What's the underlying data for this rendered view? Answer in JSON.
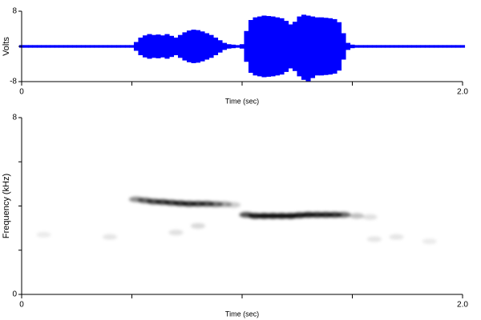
{
  "chart_data": [
    {
      "type": "waveform",
      "y_label": "Volts",
      "x_label": "Time (sec)",
      "color": "#0000ff",
      "xlim": [
        0,
        2
      ],
      "xticks": [
        0,
        {
          "value": 2,
          "label": "2.0"
        }
      ],
      "xminorticks": [
        0.5,
        1,
        1.5
      ],
      "ylim": [
        -8,
        8
      ],
      "yticks": [
        {
          "value": -8,
          "label": "-8"
        },
        8
      ],
      "yminorticks": [
        0
      ],
      "x": [
        0,
        0.02,
        0.04,
        0.06,
        0.08,
        0.1,
        0.12,
        0.14,
        0.16,
        0.18,
        0.2,
        0.22,
        0.24,
        0.26,
        0.28,
        0.3,
        0.32,
        0.34,
        0.36,
        0.38,
        0.4,
        0.42,
        0.44,
        0.46,
        0.48,
        0.5,
        0.52,
        0.54,
        0.56,
        0.58,
        0.6,
        0.62,
        0.64,
        0.66,
        0.68,
        0.7,
        0.72,
        0.74,
        0.76,
        0.78,
        0.8,
        0.82,
        0.84,
        0.86,
        0.88,
        0.9,
        0.92,
        0.94,
        0.96,
        0.98,
        1,
        1.02,
        1.04,
        1.06,
        1.08,
        1.1,
        1.12,
        1.14,
        1.16,
        1.18,
        1.2,
        1.22,
        1.24,
        1.26,
        1.28,
        1.3,
        1.32,
        1.34,
        1.36,
        1.38,
        1.4,
        1.42,
        1.44,
        1.46,
        1.48,
        1.5,
        1.52,
        1.54,
        1.56,
        1.58,
        1.6,
        1.62,
        1.64,
        1.66,
        1.68,
        1.7,
        1.72,
        1.74,
        1.76,
        1.78,
        1.8,
        1.82,
        1.84,
        1.86,
        1.88,
        1.9,
        1.92,
        1.94,
        1.96,
        1.98,
        2
      ],
      "upper": [
        0.3,
        0.3,
        0.3,
        0.3,
        0.3,
        0.3,
        0.3,
        0.3,
        0.3,
        0.3,
        0.3,
        0.3,
        0.3,
        0.3,
        0.3,
        0.3,
        0.3,
        0.3,
        0.3,
        0.3,
        0.3,
        0.3,
        0.3,
        0.3,
        0.3,
        0.3,
        1.0,
        2.0,
        2.5,
        2.8,
        2.6,
        2.7,
        2.5,
        2.8,
        2.4,
        2.0,
        2.6,
        3.2,
        3.6,
        3.8,
        3.7,
        3.4,
        3.0,
        2.6,
        2.0,
        1.4,
        0.8,
        0.5,
        0.4,
        0.3,
        0.5,
        3.5,
        6.0,
        6.6,
        6.8,
        7.0,
        6.9,
        6.8,
        6.6,
        6.4,
        5.8,
        5.0,
        5.6,
        6.8,
        7.2,
        7.0,
        6.8,
        6.6,
        6.6,
        6.5,
        6.4,
        6.2,
        5.5,
        3.0,
        0.8,
        0.4,
        0.3,
        0.3,
        0.3,
        0.3,
        0.3,
        0.3,
        0.3,
        0.3,
        0.3,
        0.3,
        0.3,
        0.3,
        0.3,
        0.3,
        0.3,
        0.3,
        0.3,
        0.3,
        0.3,
        0.3,
        0.3,
        0.3,
        0.3,
        0.3,
        0.3
      ],
      "lower": [
        -0.3,
        -0.3,
        -0.3,
        -0.3,
        -0.3,
        -0.3,
        -0.3,
        -0.3,
        -0.3,
        -0.3,
        -0.3,
        -0.3,
        -0.3,
        -0.3,
        -0.3,
        -0.3,
        -0.3,
        -0.3,
        -0.3,
        -0.3,
        -0.3,
        -0.3,
        -0.3,
        -0.3,
        -0.3,
        -0.3,
        -1.0,
        -2.0,
        -2.5,
        -2.8,
        -2.6,
        -2.7,
        -2.5,
        -2.8,
        -2.4,
        -2.0,
        -2.6,
        -3.2,
        -3.6,
        -3.8,
        -3.7,
        -3.4,
        -3.0,
        -2.6,
        -2.0,
        -1.4,
        -0.8,
        -0.5,
        -0.4,
        -0.3,
        -0.5,
        -3.5,
        -6.0,
        -6.6,
        -6.8,
        -7.0,
        -6.9,
        -6.8,
        -6.6,
        -6.4,
        -5.8,
        -5.0,
        -5.6,
        -6.8,
        -7.6,
        -7.9,
        -7.2,
        -6.6,
        -6.6,
        -6.5,
        -6.4,
        -6.2,
        -5.5,
        -3.0,
        -0.8,
        -0.4,
        -0.3,
        -0.3,
        -0.3,
        -0.3,
        -0.3,
        -0.3,
        -0.3,
        -0.3,
        -0.3,
        -0.3,
        -0.3,
        -0.3,
        -0.3,
        -0.3,
        -0.3,
        -0.3,
        -0.3,
        -0.3,
        -0.3,
        -0.3,
        -0.3,
        -0.3,
        -0.3,
        -0.3,
        -0.3
      ]
    },
    {
      "type": "spectrogram",
      "y_label": "Frequency (kHz)",
      "x_label": "Time (sec)",
      "color": "#000000",
      "xlim": [
        0,
        2
      ],
      "xticks": [
        0,
        {
          "value": 2,
          "label": "2.0"
        }
      ],
      "xminorticks": [
        0.5,
        1,
        1.5
      ],
      "ylim": [
        0,
        8
      ],
      "yticks": [
        0,
        8
      ],
      "yminorticks": [
        2,
        4,
        6
      ],
      "x": [
        0.52,
        0.56,
        0.6,
        0.64,
        0.68,
        0.72,
        0.76,
        0.8,
        0.84,
        0.88,
        0.92,
        0.96,
        1.02,
        1.06,
        1.1,
        1.14,
        1.18,
        1.22,
        1.26,
        1.3,
        1.34,
        1.38,
        1.42,
        1.46,
        1.52,
        1.58,
        0.1,
        0.4,
        0.7,
        0.8,
        1.6,
        1.7,
        1.85
      ],
      "y": [
        4.3,
        4.25,
        4.2,
        4.18,
        4.15,
        4.12,
        4.1,
        4.1,
        4.1,
        4.08,
        4.08,
        4.05,
        3.6,
        3.55,
        3.55,
        3.55,
        3.55,
        3.55,
        3.58,
        3.6,
        3.6,
        3.6,
        3.6,
        3.6,
        3.55,
        3.5,
        2.7,
        2.6,
        2.8,
        3.1,
        2.5,
        2.6,
        2.4
      ],
      "intensity": [
        0.45,
        0.6,
        0.7,
        0.75,
        0.75,
        0.8,
        0.8,
        0.75,
        0.7,
        0.55,
        0.35,
        0.2,
        0.7,
        0.9,
        0.95,
        0.95,
        0.95,
        0.95,
        0.9,
        0.9,
        0.85,
        0.85,
        0.8,
        0.6,
        0.25,
        0.12,
        0.08,
        0.1,
        0.12,
        0.15,
        0.1,
        0.1,
        0.08
      ]
    }
  ]
}
